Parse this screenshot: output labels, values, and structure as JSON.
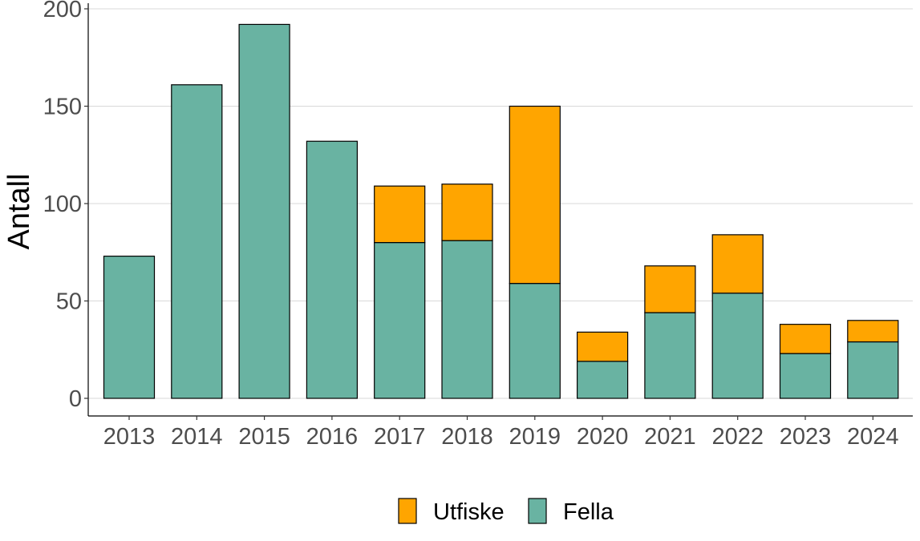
{
  "chart_data": {
    "type": "bar",
    "stacked": true,
    "categories": [
      "2013",
      "2014",
      "2015",
      "2016",
      "2017",
      "2018",
      "2019",
      "2020",
      "2021",
      "2022",
      "2023",
      "2024"
    ],
    "series": [
      {
        "name": "Fella",
        "color": "#69b3a2",
        "values": [
          73,
          161,
          192,
          132,
          80,
          81,
          59,
          19,
          44,
          54,
          23,
          29
        ]
      },
      {
        "name": "Utfiske",
        "color": "#ffa500",
        "values": [
          0,
          0,
          0,
          0,
          29,
          29,
          91,
          15,
          24,
          30,
          15,
          11
        ]
      }
    ],
    "ylabel": "Antall",
    "xlabel": "",
    "ylim": [
      0,
      200
    ],
    "yticks": [
      0,
      50,
      100,
      150,
      200
    ],
    "grid": "horizontal",
    "legend": {
      "position": "bottom",
      "order": [
        "Utfiske",
        "Fella"
      ]
    }
  }
}
